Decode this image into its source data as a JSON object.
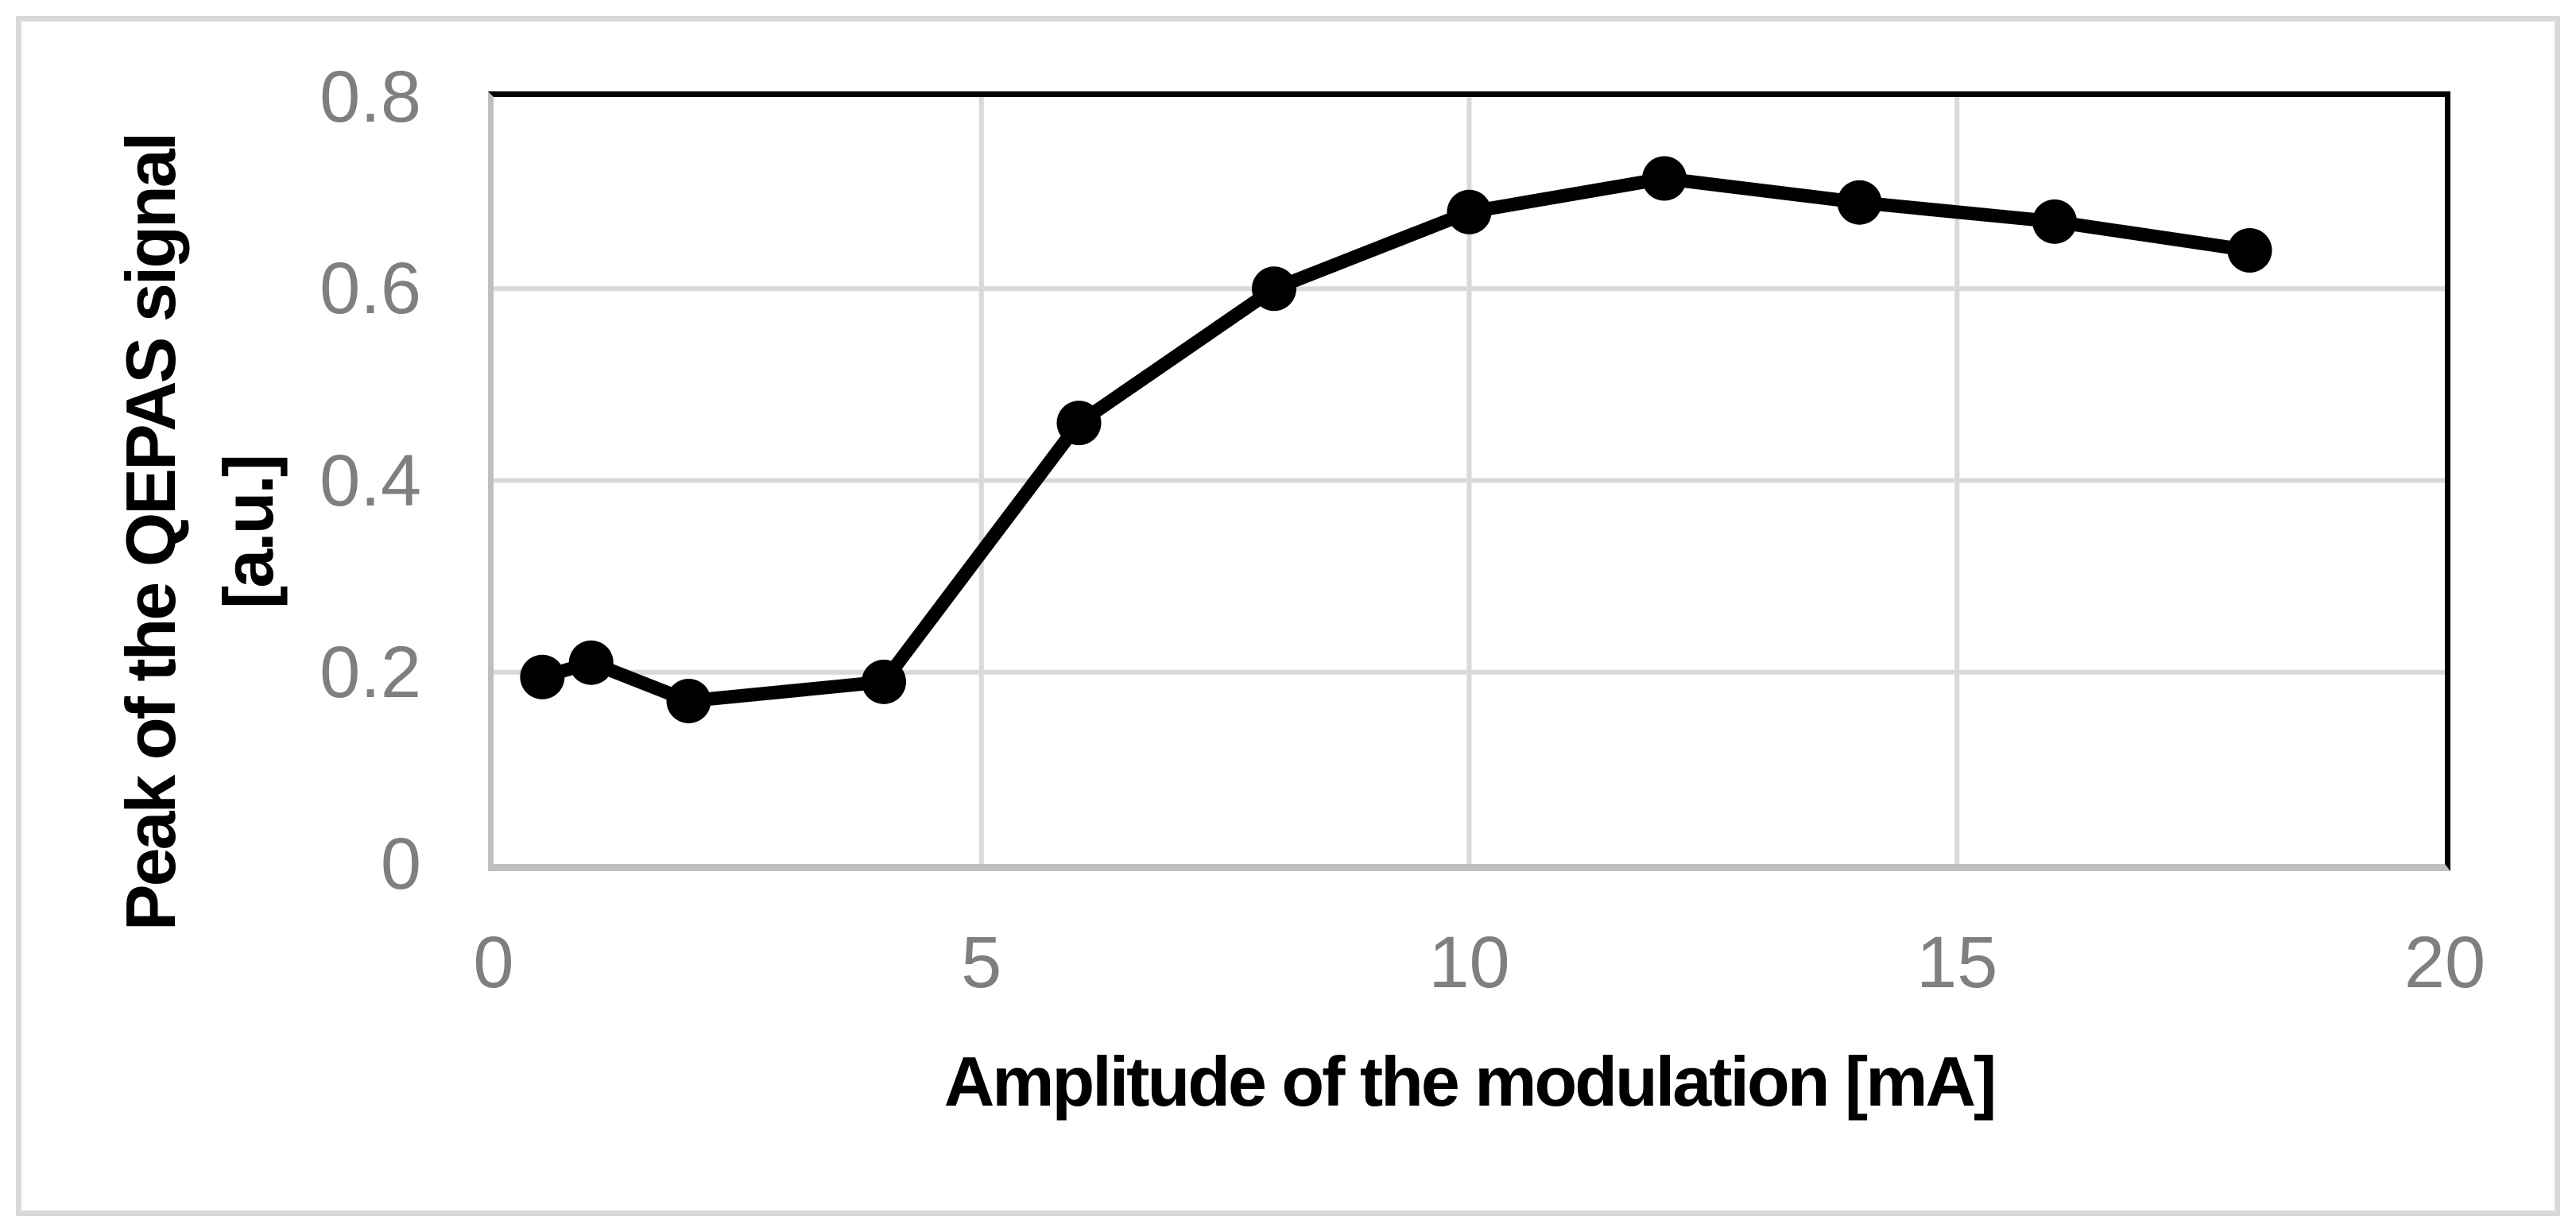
{
  "chart_data": {
    "type": "line",
    "xlabel": "Amplitude of the modulation [mA]",
    "ylabel_line1": "Peak of the QEPAS signal",
    "ylabel_line2": "[a.u.]",
    "xlim": [
      0,
      20
    ],
    "ylim": [
      0,
      0.8
    ],
    "x_ticks": [
      0,
      5,
      10,
      15,
      20
    ],
    "x_tick_labels": [
      "0",
      "5",
      "10",
      "15",
      "20"
    ],
    "y_ticks": [
      0,
      0.2,
      0.4,
      0.6,
      0.8
    ],
    "y_tick_labels": [
      "0",
      "0.2",
      "0.4",
      "0.6",
      "0.8"
    ],
    "grid": true,
    "legend": "none",
    "series": [
      {
        "name": "Peak of the QEPAS signal",
        "marker": "circle",
        "x": [
          0.5,
          1,
          2,
          4,
          6,
          8,
          10,
          12,
          14,
          16,
          18
        ],
        "y": [
          0.195,
          0.21,
          0.17,
          0.19,
          0.46,
          0.6,
          0.68,
          0.715,
          0.69,
          0.67,
          0.64
        ]
      }
    ],
    "colors": {
      "line": "#000000",
      "marker": "#000000",
      "gridline": "#D9D9D9",
      "axis_line": "#BFBFBF",
      "plot_border": "#000000",
      "tick_label": "#7F7F7F",
      "axis_title": "#000000",
      "figure_border": "#D9D9D9",
      "background": "#FFFFFF"
    }
  }
}
